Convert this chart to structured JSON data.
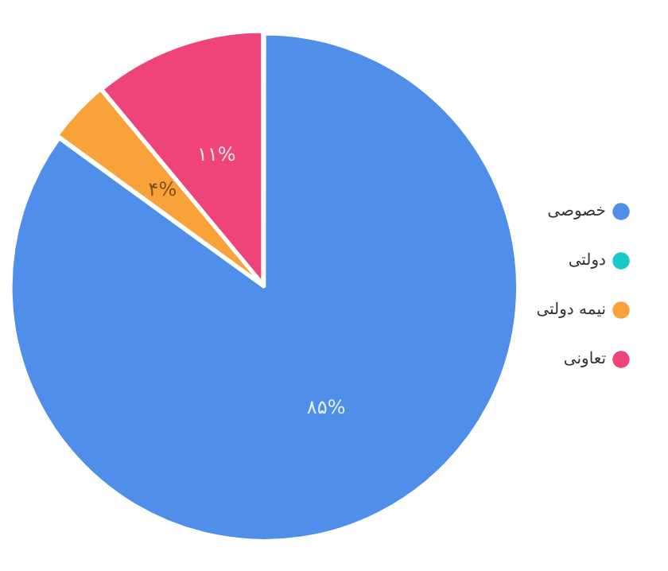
{
  "chart_data": {
    "type": "pie",
    "categories": [
      "خصوصی",
      "دولتی",
      "نیمه دولتی",
      "تعاونی"
    ],
    "values": [
      85,
      0,
      4,
      11
    ],
    "colors": [
      "#4f8fe9",
      "#19c9c9",
      "#f9a23a",
      "#ef4479"
    ],
    "value_labels": [
      "۸۵%",
      null,
      "۴%",
      "۱۱%"
    ],
    "legend": "right"
  }
}
